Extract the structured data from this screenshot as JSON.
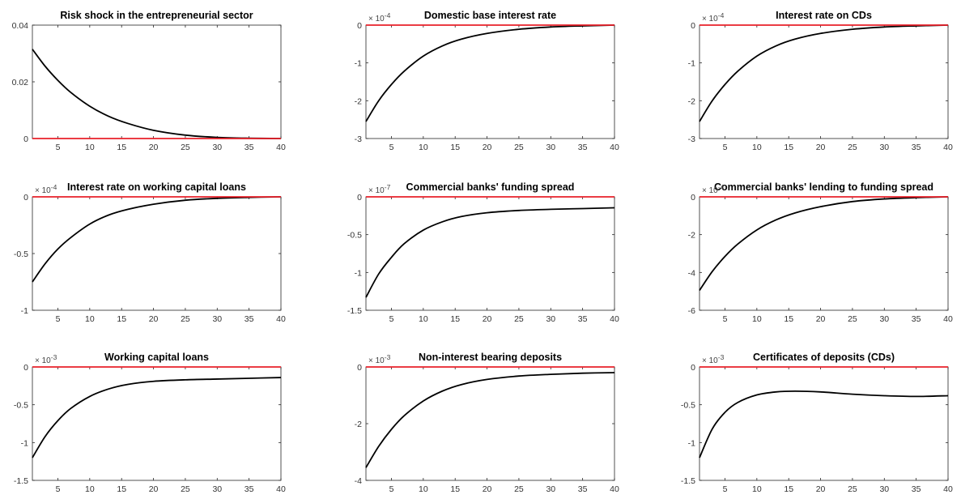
{
  "chart_data": [
    {
      "type": "line",
      "title": "Risk shock in the entrepreneurial sector",
      "exponent": "",
      "x": [
        1,
        40
      ],
      "xlim": [
        1,
        40
      ],
      "ylim": [
        0,
        0.04
      ],
      "xticks": [
        "5",
        "10",
        "15",
        "20",
        "25",
        "30",
        "35",
        "40"
      ],
      "yticks": [
        {
          "v": 0,
          "l": "0"
        },
        {
          "v": 0.02,
          "l": "0.02"
        },
        {
          "v": 0.04,
          "l": "0.04"
        }
      ],
      "series": [
        {
          "role": "response",
          "x": [
            1,
            3,
            5,
            7,
            10,
            13,
            16,
            20,
            25,
            30,
            35,
            40
          ],
          "y": [
            0.0315,
            0.0255,
            0.0205,
            0.0163,
            0.0114,
            0.0078,
            0.0053,
            0.0029,
            0.0012,
            0.0004,
            0.0001,
            0.0
          ]
        },
        {
          "role": "steady-state",
          "x": [
            1,
            40
          ],
          "y": [
            0,
            0
          ]
        }
      ]
    },
    {
      "type": "line",
      "title": "Domestic base interest rate",
      "exponent": "-4",
      "x": [
        1,
        40
      ],
      "xlim": [
        1,
        40
      ],
      "ylim": [
        -3,
        0
      ],
      "xticks": [
        "5",
        "10",
        "15",
        "20",
        "25",
        "30",
        "35",
        "40"
      ],
      "yticks": [
        {
          "v": -3,
          "l": "-3"
        },
        {
          "v": -2,
          "l": "-2"
        },
        {
          "v": -1,
          "l": "-1"
        },
        {
          "v": 0,
          "l": "0"
        }
      ],
      "series": [
        {
          "role": "response",
          "x": [
            1,
            3,
            5,
            7,
            10,
            13,
            16,
            20,
            25,
            30,
            35,
            40
          ],
          "y": [
            -2.55,
            -2.0,
            -1.57,
            -1.22,
            -0.82,
            -0.55,
            -0.37,
            -0.22,
            -0.11,
            -0.05,
            -0.02,
            0.0
          ]
        },
        {
          "role": "steady-state",
          "x": [
            1,
            40
          ],
          "y": [
            0,
            0
          ]
        }
      ]
    },
    {
      "type": "line",
      "title": "Interest rate on CDs",
      "exponent": "-4",
      "x": [
        1,
        40
      ],
      "xlim": [
        1,
        40
      ],
      "ylim": [
        -3,
        0
      ],
      "xticks": [
        "5",
        "10",
        "15",
        "20",
        "25",
        "30",
        "35",
        "40"
      ],
      "yticks": [
        {
          "v": -3,
          "l": "-3"
        },
        {
          "v": -2,
          "l": "-2"
        },
        {
          "v": -1,
          "l": "-1"
        },
        {
          "v": 0,
          "l": "0"
        }
      ],
      "series": [
        {
          "role": "response",
          "x": [
            1,
            3,
            5,
            7,
            10,
            13,
            16,
            20,
            25,
            30,
            35,
            40
          ],
          "y": [
            -2.55,
            -2.0,
            -1.57,
            -1.22,
            -0.82,
            -0.55,
            -0.37,
            -0.22,
            -0.11,
            -0.05,
            -0.02,
            0.0
          ]
        },
        {
          "role": "steady-state",
          "x": [
            1,
            40
          ],
          "y": [
            0,
            0
          ]
        }
      ]
    },
    {
      "type": "line",
      "title": "Interest rate on working capital loans",
      "exponent": "-4",
      "x": [
        1,
        40
      ],
      "xlim": [
        1,
        40
      ],
      "ylim": [
        -1,
        0
      ],
      "xticks": [
        "5",
        "10",
        "15",
        "20",
        "25",
        "30",
        "35",
        "40"
      ],
      "yticks": [
        {
          "v": -1,
          "l": "-1"
        },
        {
          "v": -0.5,
          "l": "-0.5"
        },
        {
          "v": 0,
          "l": "0"
        }
      ],
      "series": [
        {
          "role": "response",
          "x": [
            1,
            3,
            5,
            7,
            10,
            13,
            16,
            20,
            25,
            30,
            35,
            40
          ],
          "y": [
            -0.75,
            -0.59,
            -0.46,
            -0.36,
            -0.24,
            -0.16,
            -0.11,
            -0.065,
            -0.03,
            -0.013,
            -0.005,
            0.0
          ]
        },
        {
          "role": "steady-state",
          "x": [
            1,
            40
          ],
          "y": [
            0,
            0
          ]
        }
      ]
    },
    {
      "type": "line",
      "title": "Commercial banks' funding spread",
      "exponent": "-7",
      "x": [
        1,
        40
      ],
      "xlim": [
        1,
        40
      ],
      "ylim": [
        -1.5,
        0
      ],
      "xticks": [
        "5",
        "10",
        "15",
        "20",
        "25",
        "30",
        "35",
        "40"
      ],
      "yticks": [
        {
          "v": -1.5,
          "l": "-1.5"
        },
        {
          "v": -1,
          "l": "-1"
        },
        {
          "v": -0.5,
          "l": "-0.5"
        },
        {
          "v": 0,
          "l": "0"
        }
      ],
      "series": [
        {
          "role": "response",
          "x": [
            1,
            3,
            5,
            7,
            10,
            13,
            16,
            20,
            25,
            30,
            35,
            40
          ],
          "y": [
            -1.33,
            -1.02,
            -0.8,
            -0.62,
            -0.44,
            -0.33,
            -0.26,
            -0.21,
            -0.18,
            -0.165,
            -0.155,
            -0.145
          ]
        },
        {
          "role": "steady-state",
          "x": [
            1,
            40
          ],
          "y": [
            0,
            0
          ]
        }
      ]
    },
    {
      "type": "line",
      "title": "Commercial banks' lending to funding spread",
      "exponent": "-4",
      "x": [
        1,
        40
      ],
      "xlim": [
        1,
        40
      ],
      "ylim": [
        -6,
        0
      ],
      "xticks": [
        "5",
        "10",
        "15",
        "20",
        "25",
        "30",
        "35",
        "40"
      ],
      "yticks": [
        {
          "v": -6,
          "l": "-6"
        },
        {
          "v": -4,
          "l": "-4"
        },
        {
          "v": -2,
          "l": "-2"
        },
        {
          "v": 0,
          "l": "0"
        }
      ],
      "series": [
        {
          "role": "response",
          "x": [
            1,
            3,
            5,
            7,
            10,
            13,
            16,
            20,
            25,
            30,
            35,
            40
          ],
          "y": [
            -4.95,
            -3.95,
            -3.15,
            -2.5,
            -1.75,
            -1.22,
            -0.85,
            -0.52,
            -0.25,
            -0.11,
            -0.04,
            0.0
          ]
        },
        {
          "role": "steady-state",
          "x": [
            1,
            40
          ],
          "y": [
            0,
            0
          ]
        }
      ]
    },
    {
      "type": "line",
      "title": "Working capital loans",
      "exponent": "-3",
      "x": [
        1,
        40
      ],
      "xlim": [
        1,
        40
      ],
      "ylim": [
        -1.5,
        0
      ],
      "xticks": [
        "5",
        "10",
        "15",
        "20",
        "25",
        "30",
        "35",
        "40"
      ],
      "yticks": [
        {
          "v": -1.5,
          "l": "-1.5"
        },
        {
          "v": -1,
          "l": "-1"
        },
        {
          "v": -0.5,
          "l": "-0.5"
        },
        {
          "v": 0,
          "l": "0"
        }
      ],
      "series": [
        {
          "role": "response",
          "x": [
            1,
            3,
            5,
            7,
            10,
            13,
            16,
            20,
            25,
            30,
            35,
            40
          ],
          "y": [
            -1.2,
            -0.92,
            -0.71,
            -0.55,
            -0.39,
            -0.29,
            -0.23,
            -0.19,
            -0.17,
            -0.16,
            -0.15,
            -0.14
          ]
        },
        {
          "role": "steady-state",
          "x": [
            1,
            40
          ],
          "y": [
            0,
            0
          ]
        }
      ]
    },
    {
      "type": "line",
      "title": "Non-interest bearing deposits",
      "exponent": "-3",
      "x": [
        1,
        40
      ],
      "xlim": [
        1,
        40
      ],
      "ylim": [
        -4,
        0
      ],
      "xticks": [
        "5",
        "10",
        "15",
        "20",
        "25",
        "30",
        "35",
        "40"
      ],
      "yticks": [
        {
          "v": -4,
          "l": "-4"
        },
        {
          "v": -2,
          "l": "-2"
        },
        {
          "v": 0,
          "l": "0"
        }
      ],
      "series": [
        {
          "role": "response",
          "x": [
            1,
            3,
            5,
            7,
            10,
            13,
            16,
            20,
            25,
            30,
            35,
            40
          ],
          "y": [
            -3.55,
            -2.8,
            -2.2,
            -1.72,
            -1.2,
            -0.85,
            -0.62,
            -0.44,
            -0.32,
            -0.26,
            -0.22,
            -0.2
          ]
        },
        {
          "role": "steady-state",
          "x": [
            1,
            40
          ],
          "y": [
            0,
            0
          ]
        }
      ]
    },
    {
      "type": "line",
      "title": "Certificates of deposits (CDs)",
      "exponent": "-3",
      "x": [
        1,
        40
      ],
      "xlim": [
        1,
        40
      ],
      "ylim": [
        -1.5,
        0
      ],
      "xticks": [
        "5",
        "10",
        "15",
        "20",
        "25",
        "30",
        "35",
        "40"
      ],
      "yticks": [
        {
          "v": -1.5,
          "l": "-1.5"
        },
        {
          "v": -1,
          "l": "-1"
        },
        {
          "v": -0.5,
          "l": "-0.5"
        },
        {
          "v": 0,
          "l": "0"
        }
      ],
      "series": [
        {
          "role": "response",
          "x": [
            1,
            3,
            5,
            7,
            10,
            13,
            16,
            20,
            25,
            30,
            35,
            40
          ],
          "y": [
            -1.2,
            -0.82,
            -0.6,
            -0.47,
            -0.37,
            -0.33,
            -0.32,
            -0.33,
            -0.36,
            -0.38,
            -0.39,
            -0.38
          ]
        },
        {
          "role": "steady-state",
          "x": [
            1,
            40
          ],
          "y": [
            0,
            0
          ]
        }
      ]
    }
  ]
}
